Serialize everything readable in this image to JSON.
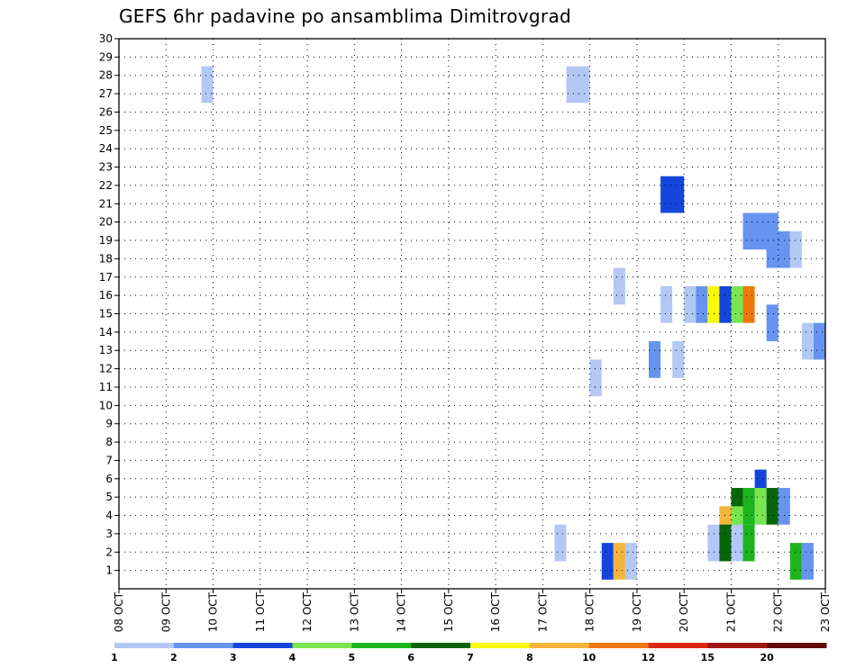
{
  "chart_data": {
    "type": "heatmap",
    "title": "GEFS 6hr padavine po ansamblima Dimitrovgrad",
    "xlabel": "",
    "ylabel": "",
    "x_ticks": [
      "08 OCT",
      "09 OCT",
      "10 OCT",
      "11 OCT",
      "12 OCT",
      "13 OCT",
      "14 OCT",
      "15 OCT",
      "16 OCT",
      "17 OCT",
      "18 OCT",
      "19 OCT",
      "20 OCT",
      "21 OCT",
      "22 OCT",
      "23 OCT"
    ],
    "y_ticks": [
      "1",
      "2",
      "3",
      "4",
      "5",
      "6",
      "7",
      "8",
      "9",
      "10",
      "11",
      "12",
      "13",
      "14",
      "15",
      "16",
      "17",
      "18",
      "19",
      "20",
      "21",
      "22",
      "23",
      "24",
      "25",
      "26",
      "27",
      "28",
      "29",
      "30"
    ],
    "xlim": [
      0,
      60
    ],
    "ylim": [
      0,
      30
    ],
    "grid": true,
    "colorbar": {
      "colors": [
        "#b4c8f5",
        "#6694f0",
        "#1446dc",
        "#78e650",
        "#1eb41e",
        "#0a640a",
        "#fafa0a",
        "#f5b43c",
        "#f0780a",
        "#dc280f",
        "#a01414",
        "#640a0a"
      ],
      "labels": [
        "1",
        "2",
        "3",
        "4",
        "5",
        "6",
        "7",
        "8",
        "10",
        "12",
        "15",
        "20"
      ]
    },
    "cells": [
      {
        "x": [
          7,
          7
        ],
        "y": [
          27,
          28
        ],
        "c": 0
      },
      {
        "x": [
          38,
          39
        ],
        "y": [
          27,
          28
        ],
        "c": 0
      },
      {
        "x": [
          46,
          47
        ],
        "y": [
          21,
          22
        ],
        "c": 2
      },
      {
        "x": [
          53,
          55
        ],
        "y": [
          19,
          20
        ],
        "c": 1
      },
      {
        "x": [
          55,
          56
        ],
        "y": [
          18,
          19
        ],
        "c": 1
      },
      {
        "x": [
          57,
          57
        ],
        "y": [
          18,
          19
        ],
        "c": 0
      },
      {
        "x": [
          42,
          42
        ],
        "y": [
          16,
          17
        ],
        "c": 0
      },
      {
        "x": [
          46,
          46
        ],
        "y": [
          15,
          16
        ],
        "c": 0
      },
      {
        "x": [
          48,
          48
        ],
        "y": [
          15,
          16
        ],
        "c": 0
      },
      {
        "x": [
          49,
          49
        ],
        "y": [
          15,
          16
        ],
        "c": 1
      },
      {
        "x": [
          50,
          50
        ],
        "y": [
          15,
          16
        ],
        "c": 6
      },
      {
        "x": [
          51,
          51
        ],
        "y": [
          15,
          16
        ],
        "c": 2
      },
      {
        "x": [
          52,
          52
        ],
        "y": [
          15,
          16
        ],
        "c": 3
      },
      {
        "x": [
          53,
          53
        ],
        "y": [
          15,
          16
        ],
        "c": 8
      },
      {
        "x": [
          55,
          55
        ],
        "y": [
          14,
          15
        ],
        "c": 1
      },
      {
        "x": [
          58,
          58
        ],
        "y": [
          13,
          14
        ],
        "c": 0
      },
      {
        "x": [
          59,
          59
        ],
        "y": [
          13,
          14
        ],
        "c": 1
      },
      {
        "x": [
          45,
          45
        ],
        "y": [
          12,
          13
        ],
        "c": 1
      },
      {
        "x": [
          47,
          47
        ],
        "y": [
          12,
          13
        ],
        "c": 0
      },
      {
        "x": [
          40,
          40
        ],
        "y": [
          11,
          12
        ],
        "c": 0
      },
      {
        "x": [
          54,
          54
        ],
        "y": [
          5,
          6
        ],
        "c": 2
      },
      {
        "x": [
          52,
          52
        ],
        "y": [
          4,
          5
        ],
        "c": 5
      },
      {
        "x": [
          53,
          53
        ],
        "y": [
          4,
          5
        ],
        "c": 4
      },
      {
        "x": [
          54,
          54
        ],
        "y": [
          4,
          5
        ],
        "c": 3
      },
      {
        "x": [
          55,
          55
        ],
        "y": [
          4,
          5
        ],
        "c": 5
      },
      {
        "x": [
          56,
          56
        ],
        "y": [
          4,
          5
        ],
        "c": 1
      },
      {
        "x": [
          51,
          51
        ],
        "y": [
          3,
          4
        ],
        "c": 7
      },
      {
        "x": [
          52,
          52
        ],
        "y": [
          3,
          4
        ],
        "c": 3
      },
      {
        "x": [
          37,
          37
        ],
        "y": [
          2,
          3
        ],
        "c": 0
      },
      {
        "x": [
          50,
          50
        ],
        "y": [
          2,
          3
        ],
        "c": 0
      },
      {
        "x": [
          51,
          51
        ],
        "y": [
          2,
          3
        ],
        "c": 5
      },
      {
        "x": [
          52,
          52
        ],
        "y": [
          2,
          3
        ],
        "c": 0
      },
      {
        "x": [
          53,
          53
        ],
        "y": [
          2,
          3
        ],
        "c": 4
      },
      {
        "x": [
          41,
          41
        ],
        "y": [
          1,
          2
        ],
        "c": 2
      },
      {
        "x": [
          42,
          42
        ],
        "y": [
          1,
          2
        ],
        "c": 7
      },
      {
        "x": [
          43,
          43
        ],
        "y": [
          1,
          2
        ],
        "c": 0
      },
      {
        "x": [
          57,
          57
        ],
        "y": [
          1,
          2
        ],
        "c": 4
      },
      {
        "x": [
          58,
          58
        ],
        "y": [
          1,
          2
        ],
        "c": 1
      }
    ]
  }
}
